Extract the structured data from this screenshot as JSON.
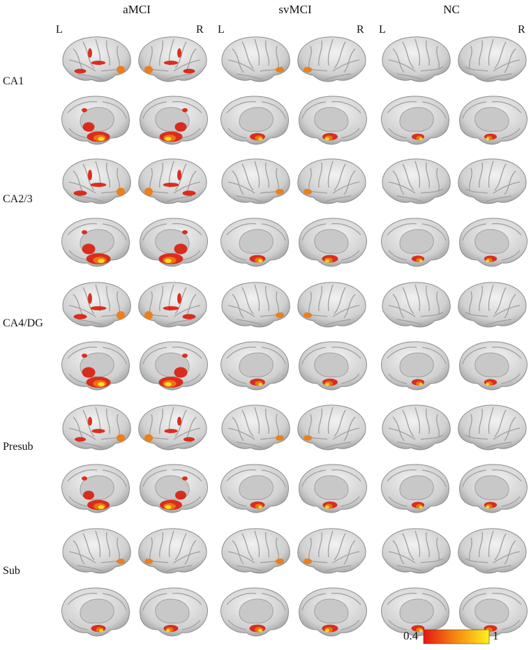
{
  "figure": {
    "groups": [
      "aMCI",
      "svMCI",
      "NC"
    ],
    "hemisphere_labels": {
      "left": "L",
      "right": "R"
    },
    "rows": [
      "CA1",
      "CA2/3",
      "CA4/DG",
      "Presub",
      "Sub"
    ],
    "colorbar": {
      "min": "0.4",
      "max": "1",
      "colors": [
        "#e8140f",
        "#f58a12",
        "#fff01e"
      ]
    },
    "colors": {
      "cortex": "#d6d6d6",
      "cortex_dark": "#8c8c8c",
      "medial_wall": "#c8c8c8",
      "hot_red": "#d9200e",
      "hot_orange": "#f07a10",
      "hot_yellow": "#fbe52a"
    },
    "activation_level": [
      [
        0.85,
        0.3,
        0.1
      ],
      [
        0.95,
        0.35,
        0.12
      ],
      [
        0.95,
        0.3,
        0.12
      ],
      [
        0.8,
        0.25,
        0.12
      ],
      [
        0.25,
        0.35,
        0.15
      ]
    ]
  }
}
